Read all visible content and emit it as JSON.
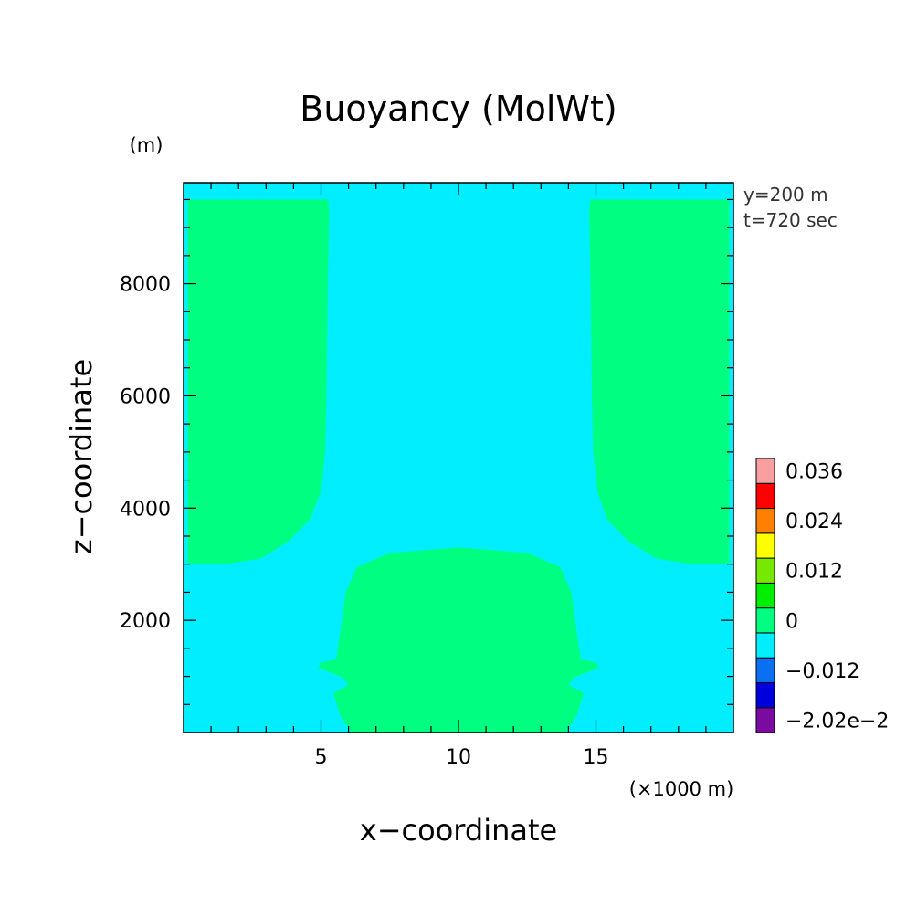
{
  "chart_data": {
    "type": "heatmap",
    "title": "Buoyancy (MolWt)",
    "xlabel": "x−coordinate",
    "ylabel": "z−coordinate",
    "x_unit": "(×1000 m)",
    "y_unit": "(m)",
    "annotations": [
      "y=200 m",
      "t=720 sec"
    ],
    "xlim": [
      0,
      20
    ],
    "ylim": [
      0,
      9800
    ],
    "x_ticks": [
      {
        "value": 5,
        "label": "5"
      },
      {
        "value": 10,
        "label": "10"
      },
      {
        "value": 15,
        "label": "15"
      }
    ],
    "y_ticks": [
      {
        "value": 2000,
        "label": "2000"
      },
      {
        "value": 4000,
        "label": "4000"
      },
      {
        "value": 6000,
        "label": "6000"
      },
      {
        "value": 8000,
        "label": "8000"
      }
    ],
    "background_level_color": "#00eeff",
    "regions": [
      {
        "name": "upper-left-positive",
        "color": "#00ff80",
        "points": [
          [
            0.15,
            9500
          ],
          [
            5.25,
            9500
          ],
          [
            5.3,
            9300
          ],
          [
            5.25,
            8000
          ],
          [
            5.2,
            6000
          ],
          [
            5.15,
            5000
          ],
          [
            5.0,
            4300
          ],
          [
            4.6,
            3800
          ],
          [
            3.8,
            3400
          ],
          [
            2.8,
            3100
          ],
          [
            1.5,
            3000
          ],
          [
            0.15,
            3000
          ]
        ]
      },
      {
        "name": "upper-right-positive",
        "color": "#00ff80",
        "points": [
          [
            19.85,
            9500
          ],
          [
            14.8,
            9500
          ],
          [
            14.75,
            9300
          ],
          [
            14.8,
            8000
          ],
          [
            14.85,
            6000
          ],
          [
            14.9,
            5000
          ],
          [
            15.05,
            4300
          ],
          [
            15.4,
            3800
          ],
          [
            16.2,
            3400
          ],
          [
            17.2,
            3100
          ],
          [
            18.5,
            3000
          ],
          [
            19.85,
            3000
          ]
        ]
      },
      {
        "name": "lower-center-positive",
        "color": "#00ff80",
        "points": [
          [
            6.1,
            0
          ],
          [
            5.7,
            300
          ],
          [
            5.45,
            700
          ],
          [
            6.0,
            850
          ],
          [
            5.75,
            1000
          ],
          [
            5.7,
            1000
          ],
          [
            4.9,
            1150
          ],
          [
            5.0,
            1250
          ],
          [
            5.55,
            1300
          ],
          [
            5.7,
            1800
          ],
          [
            5.9,
            2500
          ],
          [
            6.3,
            2950
          ],
          [
            7.5,
            3200
          ],
          [
            10.0,
            3300
          ],
          [
            12.5,
            3200
          ],
          [
            13.7,
            2950
          ],
          [
            14.1,
            2500
          ],
          [
            14.3,
            1800
          ],
          [
            14.45,
            1300
          ],
          [
            15.0,
            1250
          ],
          [
            15.1,
            1150
          ],
          [
            14.3,
            1000
          ],
          [
            14.25,
            1000
          ],
          [
            14.0,
            850
          ],
          [
            14.55,
            700
          ],
          [
            14.3,
            300
          ],
          [
            13.9,
            0
          ]
        ]
      }
    ],
    "colorbar": {
      "levels": [
        {
          "color": "#7a0aa0",
          "label": "−2.02e−2"
        },
        {
          "color": "#0000dd",
          "label": ""
        },
        {
          "color": "#0a6ff0",
          "label": "−0.012"
        },
        {
          "color": "#00eeff",
          "label": ""
        },
        {
          "color": "#00ff80",
          "label": "0"
        },
        {
          "color": "#00ee00",
          "label": ""
        },
        {
          "color": "#77e800",
          "label": "0.012"
        },
        {
          "color": "#ffff00",
          "label": ""
        },
        {
          "color": "#ff7f00",
          "label": "0.024"
        },
        {
          "color": "#ff0000",
          "label": ""
        },
        {
          "color": "#f8a0a0",
          "label": "0.036"
        }
      ]
    }
  }
}
